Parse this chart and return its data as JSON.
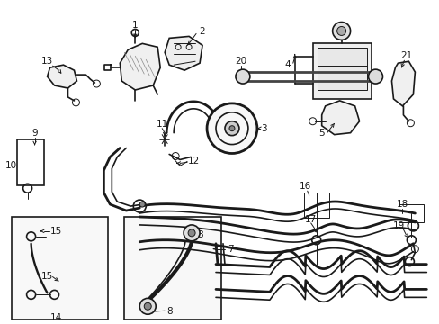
{
  "bg": "#ffffff",
  "lc": "#1a1a1a",
  "lw_thin": 0.7,
  "lw_med": 1.2,
  "lw_thick": 2.0,
  "fs": 7.5,
  "fig_w": 4.89,
  "fig_h": 3.6,
  "dpi": 100
}
